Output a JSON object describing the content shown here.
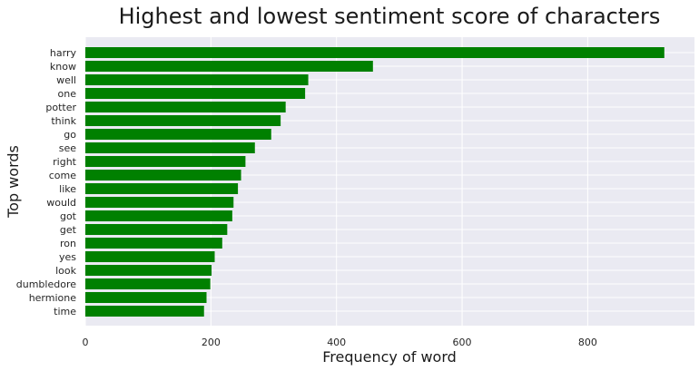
{
  "chart_data": {
    "type": "bar",
    "orientation": "horizontal",
    "title": "Highest and lowest sentiment score of characters",
    "xlabel": "Frequency of word",
    "ylabel": "Top words",
    "categories": [
      "harry",
      "know",
      "well",
      "one",
      "potter",
      "think",
      "go",
      "see",
      "right",
      "come",
      "like",
      "would",
      "got",
      "get",
      "ron",
      "yes",
      "look",
      "dumbledore",
      "hermione",
      "time"
    ],
    "values": [
      922,
      458,
      355,
      350,
      319,
      311,
      296,
      270,
      255,
      248,
      243,
      236,
      234,
      226,
      218,
      206,
      201,
      199,
      193,
      189
    ],
    "xticks": [
      0,
      200,
      400,
      600,
      800
    ],
    "xlim": [
      0,
      970
    ],
    "grid": true,
    "bar_color": "#008000",
    "background_color": "#eaeaf2",
    "grid_color": "#ffffff"
  }
}
